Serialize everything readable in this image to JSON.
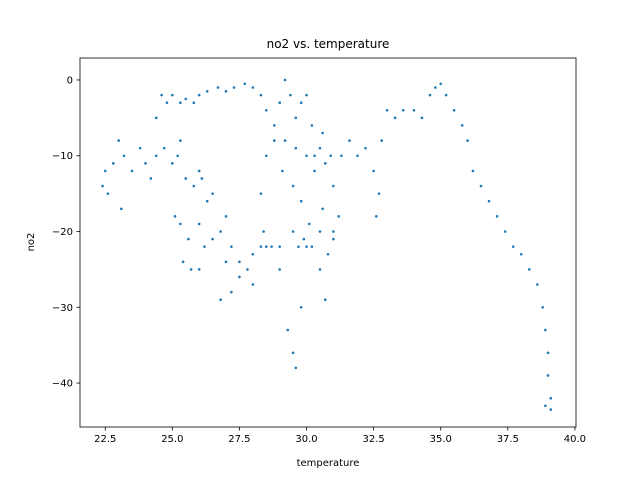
{
  "chart_data": {
    "type": "scatter",
    "title": "no2 vs. temperature",
    "x_label": "temperature",
    "y_label": "no2",
    "color": "#1f77b4",
    "xlim": [
      21.56,
      40.04
    ],
    "ylim": [
      -45.8,
      2.9
    ],
    "xticks": [
      22.5,
      {
        "value": 25,
        "label": "25.0"
      },
      27.5,
      {
        "value": 30,
        "label": "30.0"
      },
      32.5,
      {
        "value": 35,
        "label": "35.0"
      },
      37.5,
      {
        "value": 40,
        "label": "40.0"
      }
    ],
    "yticks": [
      0,
      {
        "value": -10,
        "label": "−10"
      },
      {
        "value": -20,
        "label": "−20"
      },
      {
        "value": -30,
        "label": "−30"
      },
      {
        "value": -40,
        "label": "−40"
      }
    ],
    "x": [
      22.4,
      22.5,
      22.6,
      22.8,
      23.0,
      23.1,
      23.2,
      23.5,
      23.8,
      24.0,
      24.2,
      24.4,
      24.6,
      24.8,
      25.0,
      25.3,
      25.5,
      25.8,
      26.0,
      26.3,
      26.7,
      27.0,
      27.3,
      27.7,
      28.0,
      28.3,
      28.5,
      28.8,
      29.0,
      29.2,
      29.4,
      29.6,
      29.8,
      30.0,
      30.2,
      30.5,
      30.7,
      31.0,
      31.2,
      31.0,
      30.6,
      30.3,
      30.0,
      29.6,
      29.2,
      28.8,
      28.5,
      28.3,
      28.4,
      28.7,
      29.0,
      29.3,
      29.5,
      29.6,
      29.8,
      29.7,
      29.9,
      30.2,
      30.5,
      30.7,
      30.8,
      31.0,
      30.5,
      30.0,
      29.5,
      29.0,
      28.5,
      28.0,
      27.5,
      27.2,
      27.0,
      26.8,
      26.5,
      26.2,
      26.0,
      25.7,
      25.4,
      25.3,
      25.1,
      25.6,
      26.0,
      26.3,
      26.1,
      25.8,
      25.5,
      25.2,
      25.0,
      24.7,
      24.4,
      25.3,
      26.0,
      26.5,
      27.0,
      27.2,
      27.5,
      27.8,
      28.0,
      28.3,
      26.8,
      29.1,
      29.5,
      29.8,
      30.1,
      30.3,
      30.6,
      30.9,
      31.3,
      31.6,
      31.9,
      32.2,
      32.5,
      32.7,
      32.6,
      32.8,
      33.0,
      33.3,
      33.6,
      34.0,
      34.3,
      34.6,
      34.8,
      35.0,
      35.2,
      35.5,
      35.8,
      36.0,
      36.2,
      36.5,
      36.8,
      37.1,
      37.4,
      37.7,
      38.0,
      38.3,
      38.6,
      38.8,
      38.9,
      39.0,
      39.0,
      39.1,
      38.9,
      39.1
    ],
    "values": [
      -14,
      -12,
      -15,
      -11,
      -8,
      -17,
      -10,
      -12,
      -9,
      -11,
      -13,
      -5,
      -2,
      -3,
      -2,
      -3,
      -2.5,
      -3,
      -2,
      -1.5,
      -1,
      -1.5,
      -1,
      -0.5,
      -1,
      -2,
      -4,
      -6,
      -3,
      0,
      -2,
      -5,
      -3,
      -2,
      -6,
      -9,
      -11,
      -14,
      -18,
      -20,
      -17,
      -12,
      -10,
      -9,
      -8,
      -8,
      -10,
      -15,
      -20,
      -22,
      -25,
      -33,
      -36,
      -38,
      -30,
      -22,
      -21,
      -22,
      -25,
      -29,
      -23,
      -21,
      -20,
      -22,
      -20,
      -22,
      -22,
      -23,
      -24,
      -22,
      -18,
      -20,
      -21,
      -22,
      -25,
      -25,
      -24,
      -19,
      -18,
      -21,
      -19,
      -16,
      -13,
      -14,
      -13,
      -10,
      -11,
      -9,
      -10,
      -8,
      -12,
      -15,
      -24,
      -28,
      -26,
      -25,
      -27,
      -22,
      -29,
      -12,
      -14,
      -16,
      -19,
      -10,
      -7,
      -10,
      -10,
      -8,
      -10,
      -9,
      -12,
      -15,
      -18,
      -8,
      -4,
      -5,
      -4,
      -4,
      -5,
      -2,
      -1,
      -0.5,
      -2,
      -4,
      -6,
      -8,
      -12,
      -14,
      -16,
      -18,
      -20,
      -22,
      -23,
      -25,
      -27,
      -30,
      -33,
      -36,
      -39,
      -42,
      -43,
      -43.5
    ]
  }
}
